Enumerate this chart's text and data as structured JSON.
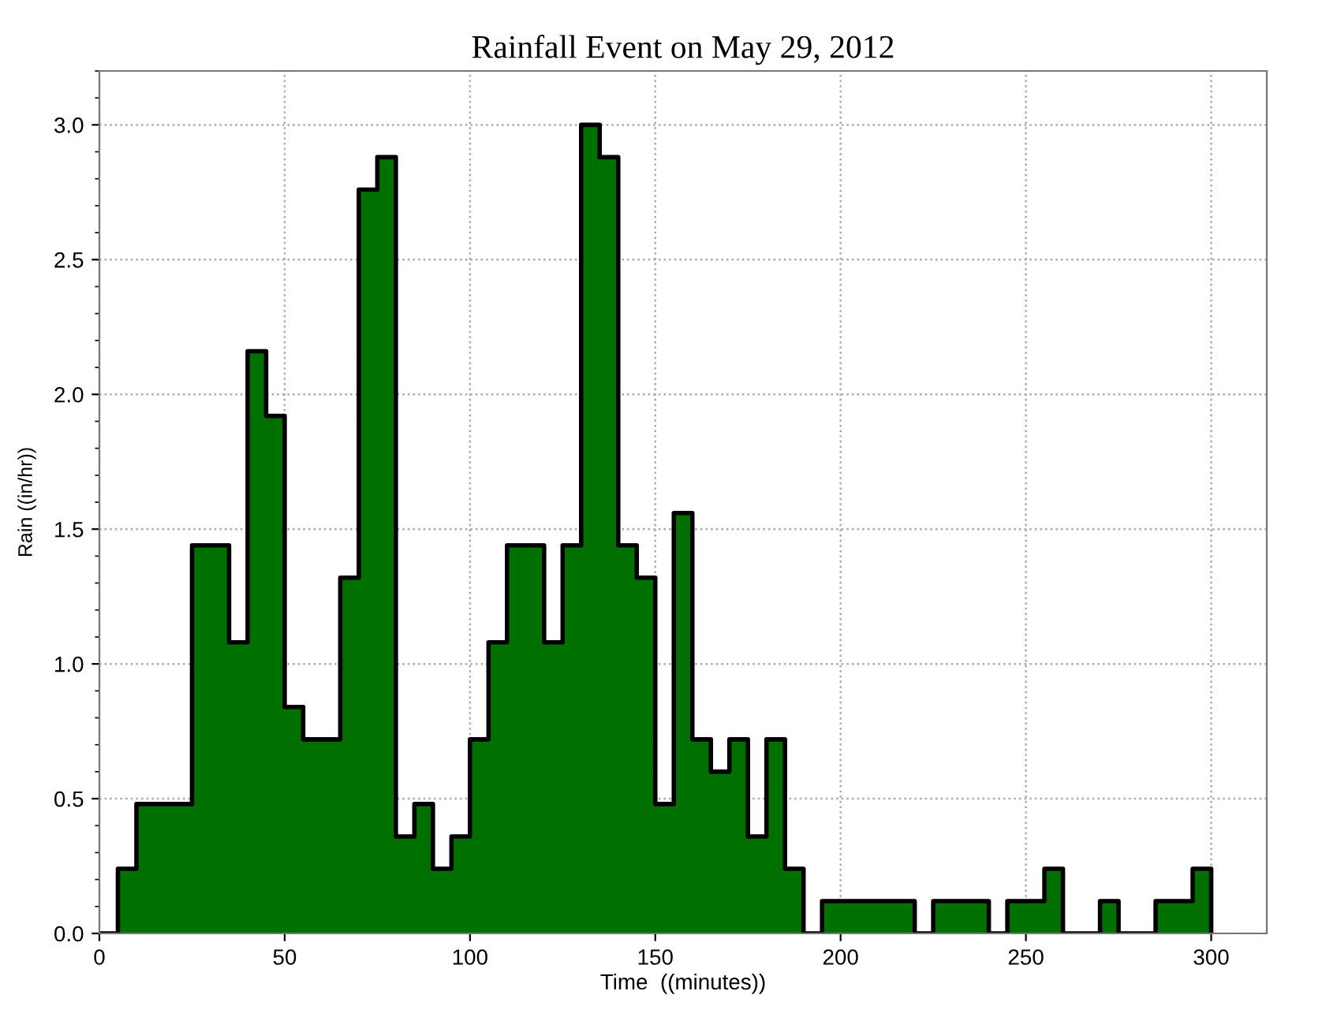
{
  "chart_data": {
    "type": "histogram",
    "title": "Rainfall Event on May 29, 2012",
    "xlabel": "Time  ((minutes))",
    "ylabel": "Rain ((in/hr))",
    "bins": [
      0,
      5,
      10,
      15,
      20,
      25,
      30,
      35,
      40,
      45,
      50,
      55,
      60,
      65,
      70,
      75,
      80,
      85,
      90,
      95,
      100,
      105,
      110,
      115,
      120,
      125,
      130,
      135,
      140,
      145,
      150,
      155,
      160,
      165,
      170,
      175,
      180,
      185,
      190,
      195,
      200,
      205,
      210,
      215,
      220,
      225,
      230,
      235,
      240,
      245,
      250,
      255,
      260,
      265,
      270,
      275,
      280,
      285,
      290,
      295,
      300
    ],
    "values": [
      0,
      0.24,
      0.48,
      0.48,
      0.48,
      1.44,
      1.44,
      1.08,
      2.16,
      1.92,
      0.84,
      0.72,
      0.72,
      1.32,
      2.76,
      2.88,
      0.36,
      0.48,
      0.24,
      0.36,
      0.72,
      1.08,
      1.44,
      1.44,
      1.08,
      1.44,
      3.0,
      2.88,
      1.44,
      1.32,
      0.48,
      1.56,
      0.72,
      0.6,
      0.72,
      0.36,
      0.72,
      0.24,
      0,
      0.12,
      0.12,
      0.12,
      0.12,
      0.12,
      0,
      0.12,
      0.12,
      0.12,
      0,
      0.12,
      0.12,
      0.24,
      0,
      0,
      0.12,
      0,
      0,
      0.12,
      0.12,
      0.24
    ],
    "color": "#007000",
    "xlim": [
      0,
      315
    ],
    "ylim": [
      0,
      3.2
    ],
    "xticks": [
      0,
      50,
      100,
      150,
      200,
      250,
      300
    ],
    "yticks": [
      {
        "value": 0,
        "label": "0.0"
      },
      {
        "value": 0.5,
        "label": "0.5"
      },
      {
        "value": 1.0,
        "label": "1.0"
      },
      {
        "value": 1.5,
        "label": "1.5"
      },
      {
        "value": 2.0,
        "label": "2.0"
      },
      {
        "value": 2.5,
        "label": "2.5"
      },
      {
        "value": 3.0,
        "label": "3.0"
      }
    ],
    "grid": true
  }
}
